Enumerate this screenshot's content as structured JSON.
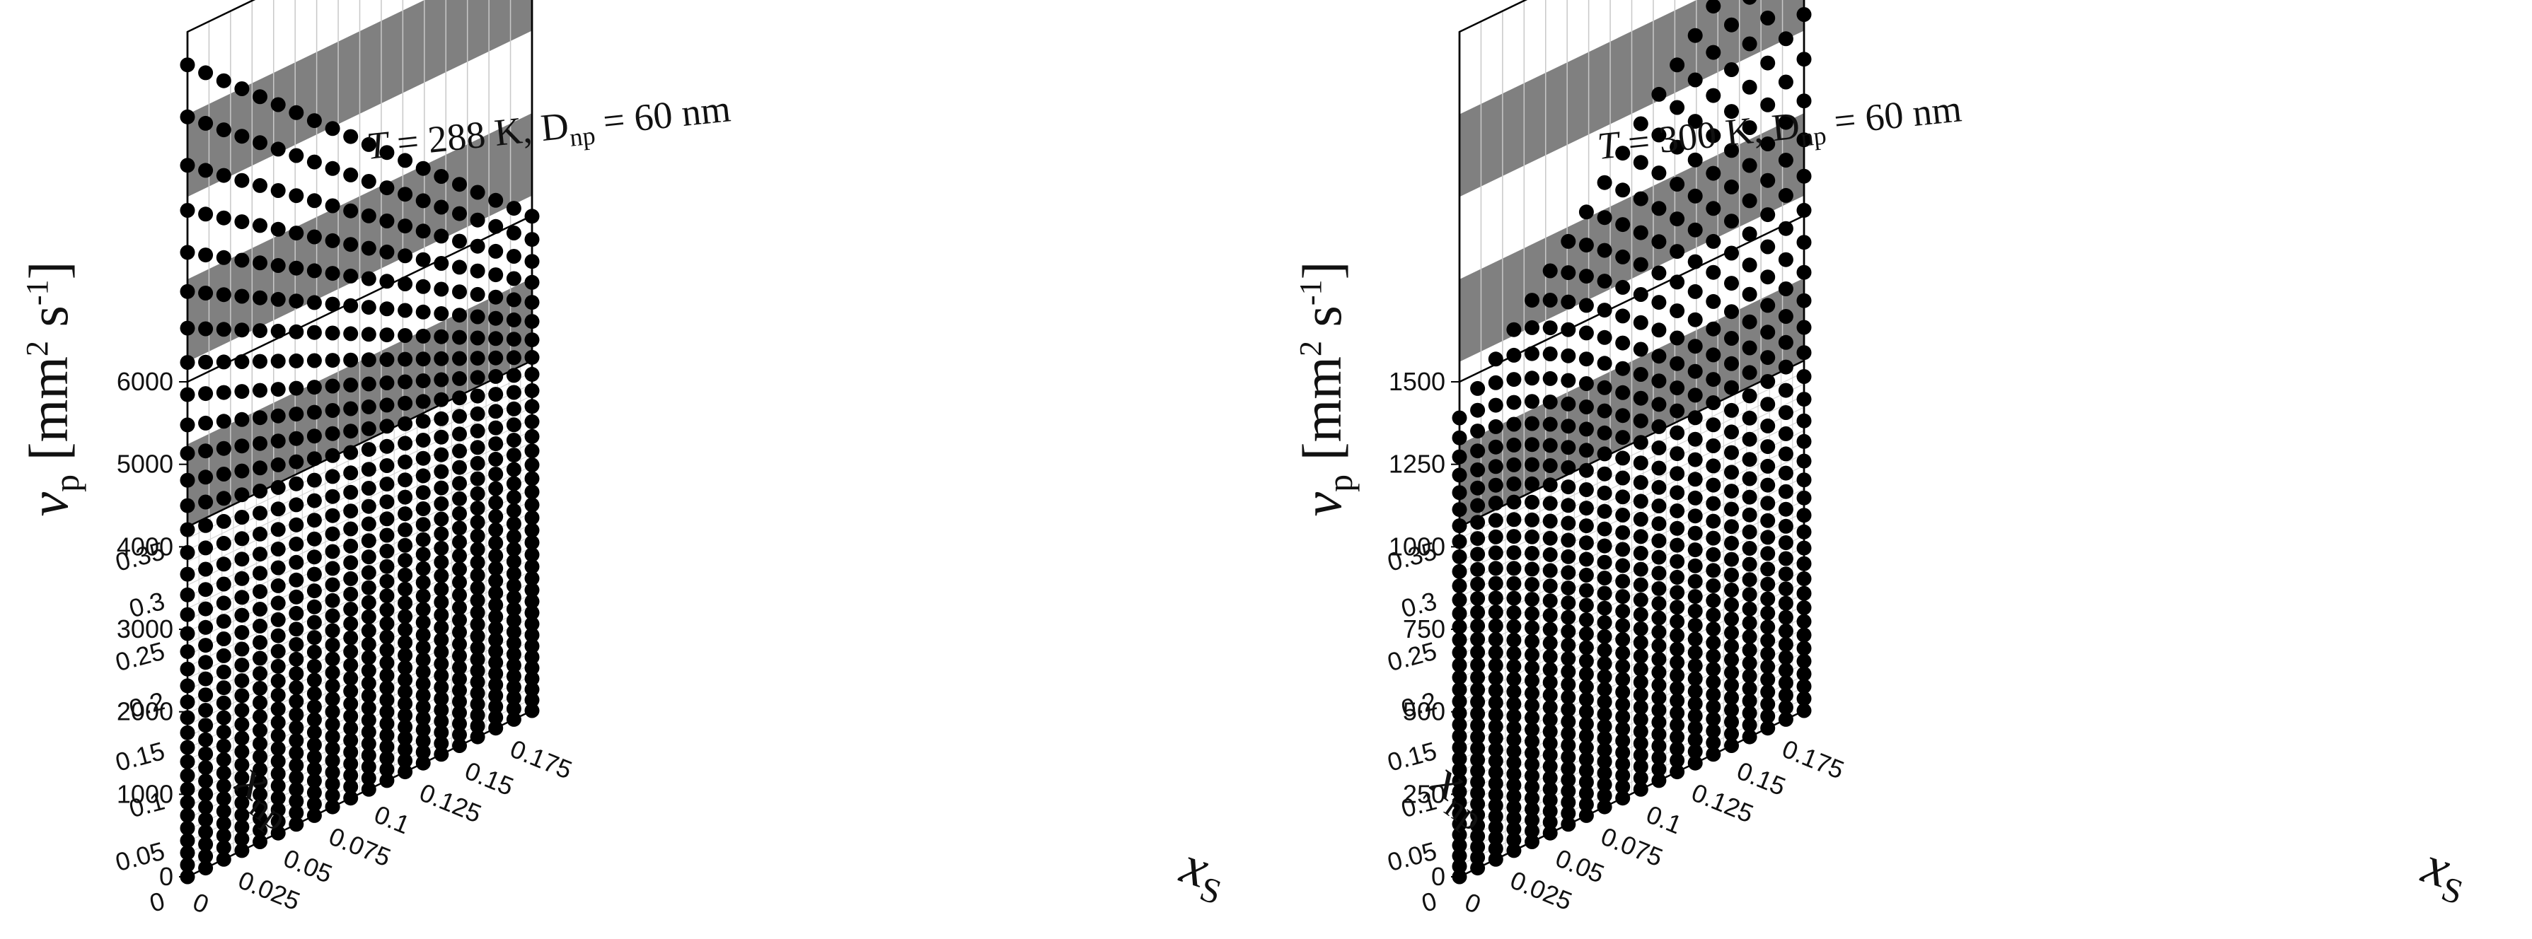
{
  "chart_data": [
    {
      "type": "scatter3d",
      "title": {
        "T_symbol": "T",
        "T_rest": " = 288 K, D",
        "D_sub": "np",
        "D_rest": " = 60 nm"
      },
      "zlabel": {
        "base": "v",
        "sub": "p",
        "bracket_open": " [mm",
        "sup1": "2",
        "mid": " s",
        "sup2": "-1",
        "bracket_close": "]"
      },
      "ylabel": {
        "base": "x",
        "sub": "np"
      },
      "xlabel": {
        "base": "x",
        "sub": "S"
      },
      "z_ticks": [
        "0",
        "1000",
        "2000",
        "3000",
        "4000",
        "5000",
        "6000"
      ],
      "z_range": [
        0,
        6000
      ],
      "y_ticks": [
        "0",
        "0.05",
        "0.1",
        "0.15",
        "0.2",
        "0.25",
        "0.3",
        "0.35"
      ],
      "y_range": [
        0,
        0.35
      ],
      "x_ticks": [
        "0",
        "0.025",
        "0.05",
        "0.075",
        "0.1",
        "0.125",
        "0.15",
        "0.175"
      ],
      "x_range": [
        0,
        0.19
      ],
      "curves": {
        "xs_count": 20,
        "xs_max": 0.19,
        "np_count": 36,
        "np_max": 0.35,
        "z_front": 0,
        "z_back_at_xs0": 5600,
        "z_back_at_xsmax": 1750
      },
      "grid": true,
      "bands": true,
      "marker_color": "#000000",
      "band_color": "#808080"
    },
    {
      "type": "scatter3d",
      "title": {
        "T_symbol": "T",
        "T_rest": " = 300 K, D",
        "D_sub": "np",
        "D_rest": " = 60 nm"
      },
      "zlabel": {
        "base": "v",
        "sub": "p",
        "bracket_open": " [mm",
        "sup1": "2",
        "mid": " s",
        "sup2": "-1",
        "bracket_close": "]"
      },
      "ylabel": {
        "base": "x",
        "sub": "np"
      },
      "xlabel": {
        "base": "x",
        "sub": "S"
      },
      "z_ticks": [
        "0",
        "250",
        "500",
        "750",
        "1000",
        "1250",
        "1500"
      ],
      "z_range": [
        0,
        1500
      ],
      "y_ticks": [
        "0",
        "0.05",
        "0.1",
        "0.15",
        "0.2",
        "0.25",
        "0.3",
        "0.35"
      ],
      "y_range": [
        0,
        0.35
      ],
      "x_ticks": [
        "0",
        "0.025",
        "0.05",
        "0.075",
        "0.1",
        "0.125",
        "0.15",
        "0.175"
      ],
      "x_range": [
        0,
        0.19
      ],
      "curves": {
        "xs_count": 20,
        "xs_max": 0.19,
        "np_count": 36,
        "np_max": 0.35,
        "z_front": 0,
        "z_back_at_xs0": 330,
        "z_back_at_xsmax": 1520
      },
      "grid": true,
      "bands": true,
      "marker_color": "#000000",
      "band_color": "#808080"
    }
  ]
}
